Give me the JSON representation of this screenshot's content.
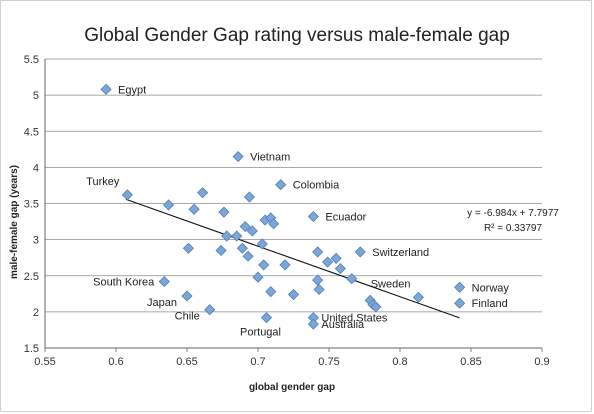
{
  "chart_data": {
    "type": "scatter",
    "title": "Global Gender Gap rating versus male-female gap",
    "xlabel": "global gender gap",
    "ylabel": "male-female gap (years)",
    "xlim": [
      0.55,
      0.9
    ],
    "ylim": [
      1.5,
      5.5
    ],
    "xticks": [
      "0.55",
      "0.6",
      "0.65",
      "0.7",
      "0.75",
      "0.8",
      "0.85",
      "0.9"
    ],
    "yticks": [
      "1.5",
      "2",
      "2.5",
      "3",
      "3.5",
      "4",
      "4.5",
      "5",
      "5.5"
    ],
    "grid": "horizontal",
    "marker_color": "#7da6d8",
    "marker_edge": "#4f7fb8",
    "trendline": {
      "slope": -6.984,
      "intercept": 7.7977,
      "x_range": [
        0.607,
        0.842
      ],
      "equation": "y = -6.984x + 7.7977",
      "r_squared": "R² = 0.33797"
    },
    "points": [
      {
        "x": 0.593,
        "y": 5.08
      },
      {
        "x": 0.608,
        "y": 3.62
      },
      {
        "x": 0.637,
        "y": 3.48
      },
      {
        "x": 0.634,
        "y": 2.42
      },
      {
        "x": 0.651,
        "y": 2.88
      },
      {
        "x": 0.65,
        "y": 2.22
      },
      {
        "x": 0.655,
        "y": 3.42
      },
      {
        "x": 0.661,
        "y": 3.65
      },
      {
        "x": 0.666,
        "y": 2.03
      },
      {
        "x": 0.674,
        "y": 2.85
      },
      {
        "x": 0.676,
        "y": 3.38
      },
      {
        "x": 0.678,
        "y": 3.05
      },
      {
        "x": 0.685,
        "y": 3.05
      },
      {
        "x": 0.686,
        "y": 4.15
      },
      {
        "x": 0.689,
        "y": 2.88
      },
      {
        "x": 0.691,
        "y": 3.18
      },
      {
        "x": 0.693,
        "y": 2.77
      },
      {
        "x": 0.694,
        "y": 3.59
      },
      {
        "x": 0.696,
        "y": 3.12
      },
      {
        "x": 0.7,
        "y": 2.48
      },
      {
        "x": 0.703,
        "y": 2.94
      },
      {
        "x": 0.704,
        "y": 2.65
      },
      {
        "x": 0.705,
        "y": 3.27
      },
      {
        "x": 0.706,
        "y": 1.92
      },
      {
        "x": 0.709,
        "y": 3.3
      },
      {
        "x": 0.709,
        "y": 2.28
      },
      {
        "x": 0.711,
        "y": 3.22
      },
      {
        "x": 0.716,
        "y": 3.76
      },
      {
        "x": 0.719,
        "y": 2.65
      },
      {
        "x": 0.725,
        "y": 2.24
      },
      {
        "x": 0.739,
        "y": 3.32
      },
      {
        "x": 0.739,
        "y": 1.92
      },
      {
        "x": 0.739,
        "y": 1.83
      },
      {
        "x": 0.742,
        "y": 2.83
      },
      {
        "x": 0.742,
        "y": 2.44
      },
      {
        "x": 0.743,
        "y": 2.31
      },
      {
        "x": 0.749,
        "y": 2.69
      },
      {
        "x": 0.755,
        "y": 2.74
      },
      {
        "x": 0.758,
        "y": 2.6
      },
      {
        "x": 0.766,
        "y": 2.46
      },
      {
        "x": 0.772,
        "y": 2.83
      },
      {
        "x": 0.779,
        "y": 2.16
      },
      {
        "x": 0.781,
        "y": 2.1
      },
      {
        "x": 0.783,
        "y": 2.07
      },
      {
        "x": 0.813,
        "y": 2.2
      },
      {
        "x": 0.842,
        "y": 2.34
      },
      {
        "x": 0.842,
        "y": 2.12
      }
    ],
    "annotations": [
      {
        "text": "Egypt",
        "x": 0.593,
        "y": 5.08,
        "pos": "right"
      },
      {
        "text": "Vietnam",
        "x": 0.686,
        "y": 4.15,
        "pos": "right"
      },
      {
        "text": "Colombia",
        "x": 0.716,
        "y": 3.76,
        "pos": "right"
      },
      {
        "text": "Turkey",
        "x": 0.608,
        "y": 3.62,
        "pos": "above-left"
      },
      {
        "text": "Ecuador",
        "x": 0.739,
        "y": 3.32,
        "pos": "right"
      },
      {
        "text": "Switzerland",
        "x": 0.772,
        "y": 2.83,
        "pos": "right"
      },
      {
        "text": "South Korea",
        "x": 0.634,
        "y": 2.42,
        "pos": "left"
      },
      {
        "text": "Sweden",
        "x": 0.813,
        "y": 2.2,
        "pos": "above-left"
      },
      {
        "text": "Norway",
        "x": 0.842,
        "y": 2.34,
        "pos": "right"
      },
      {
        "text": "Finland",
        "x": 0.842,
        "y": 2.12,
        "pos": "right"
      },
      {
        "text": "Japan",
        "x": 0.65,
        "y": 2.22,
        "pos": "below-left"
      },
      {
        "text": "Chile",
        "x": 0.666,
        "y": 2.03,
        "pos": "below-left"
      },
      {
        "text": "Portugal",
        "x": 0.706,
        "y": 1.92,
        "pos": "below"
      },
      {
        "text": "United States",
        "x": 0.739,
        "y": 1.92,
        "pos": "below-right"
      },
      {
        "text": "Australia",
        "x": 0.739,
        "y": 1.83,
        "pos": "below-right"
      }
    ]
  }
}
